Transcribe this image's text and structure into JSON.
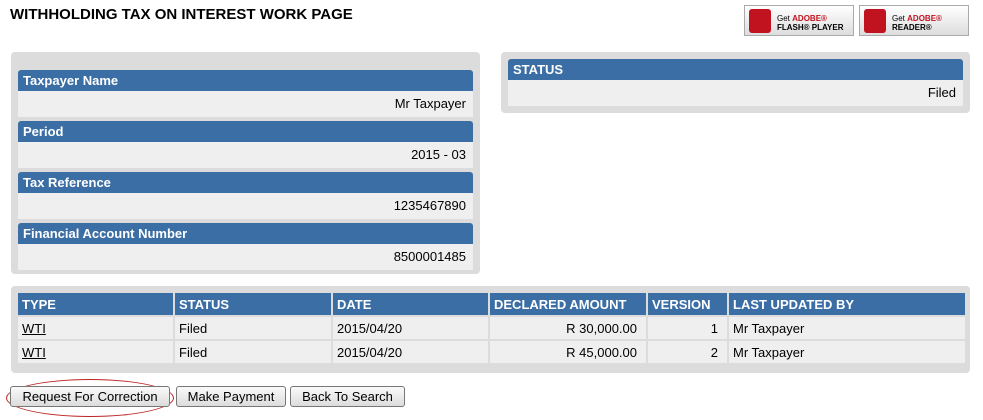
{
  "header": {
    "title": "WITHHOLDING TAX ON INTEREST WORK PAGE"
  },
  "badges": [
    {
      "get": "Get",
      "brand": "ADOBE®",
      "product": "FLASH® PLAYER"
    },
    {
      "get": "Get",
      "brand": "ADOBE®",
      "product": "READER®"
    }
  ],
  "taxpayer": {
    "fields": [
      {
        "label": "Taxpayer Name",
        "value": "Mr Taxpayer"
      },
      {
        "label": "Period",
        "value": "2015 - 03"
      },
      {
        "label": "Tax Reference",
        "value": "1235467890"
      },
      {
        "label": "Financial Account Number",
        "value": "8500001485"
      }
    ]
  },
  "status": {
    "label": "STATUS",
    "value": "Filed"
  },
  "table": {
    "columns": [
      "TYPE",
      "STATUS",
      "DATE",
      "DECLARED AMOUNT",
      "VERSION",
      "LAST UPDATED BY"
    ],
    "rows": [
      [
        "WTI",
        "Filed",
        "2015/04/20",
        "R 30,000.00",
        "1",
        "Mr Taxpayer"
      ],
      [
        "WTI",
        "Filed",
        "2015/04/20",
        "R 45,000.00",
        "2",
        "Mr Taxpayer"
      ]
    ]
  },
  "buttons": [
    "Request For Correction",
    "Make Payment",
    "Back To Search"
  ]
}
